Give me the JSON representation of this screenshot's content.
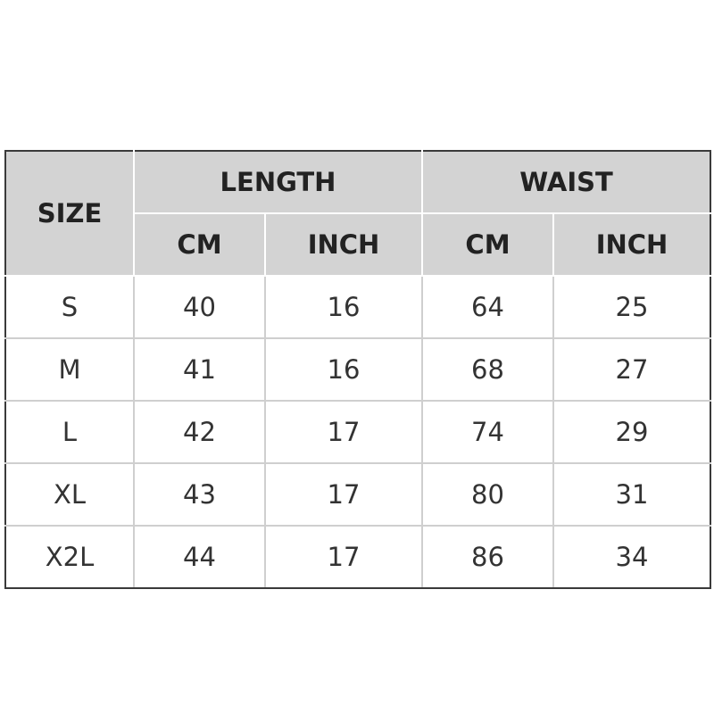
{
  "header": {
    "size": "SIZE",
    "groups": [
      {
        "label": "LENGTH",
        "units": [
          "CM",
          "INCH"
        ]
      },
      {
        "label": "WAIST",
        "units": [
          "CM",
          "INCH"
        ]
      }
    ]
  },
  "rows": [
    {
      "size": "S",
      "values": [
        "40",
        "16",
        "64",
        "25"
      ]
    },
    {
      "size": "M",
      "values": [
        "41",
        "16",
        "68",
        "27"
      ]
    },
    {
      "size": "L",
      "values": [
        "42",
        "17",
        "74",
        "29"
      ]
    },
    {
      "size": "XL",
      "values": [
        "43",
        "17",
        "80",
        "31"
      ]
    },
    {
      "size": "X2L",
      "values": [
        "44",
        "17",
        "86",
        "34"
      ]
    }
  ],
  "colors": {
    "header_bg": "#d3d3d3",
    "border": "#3a3a3a"
  }
}
